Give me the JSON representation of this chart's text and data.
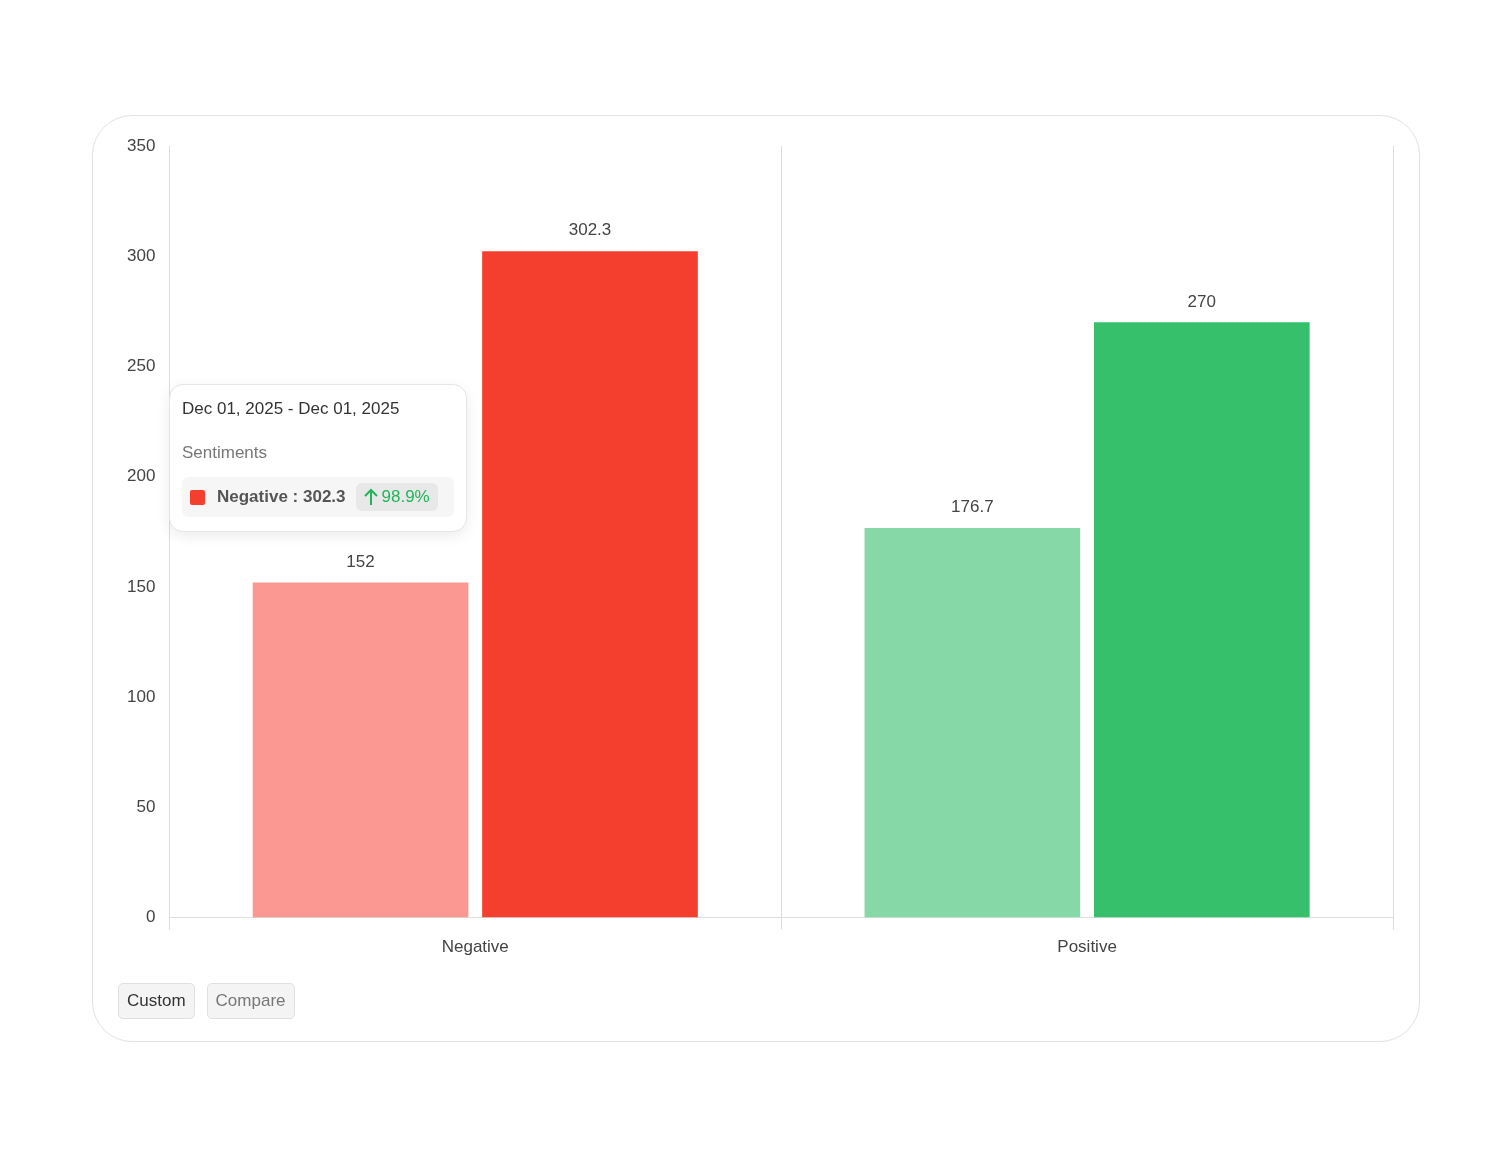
{
  "chart_data": {
    "type": "bar",
    "categories": [
      "Negative",
      "Positive"
    ],
    "series": [
      {
        "colors": [
          "#fa9891",
          "#86d9a6"
        ],
        "values": [
          152,
          176.7
        ]
      },
      {
        "colors": [
          "#f43f2f",
          "#36c06c"
        ],
        "values": [
          302.3,
          270
        ]
      }
    ],
    "ylim": [
      0,
      350
    ],
    "yticks": [
      0,
      50,
      100,
      150,
      200,
      250,
      300,
      350
    ],
    "grid": "x",
    "legend": false,
    "data_labels": true,
    "annotations": [
      "Dec 01, 2025 - Dec 01, 2025",
      "Sentiments",
      "Negative : 302.3",
      "98.9%",
      "Custom",
      "Compare"
    ]
  }
}
